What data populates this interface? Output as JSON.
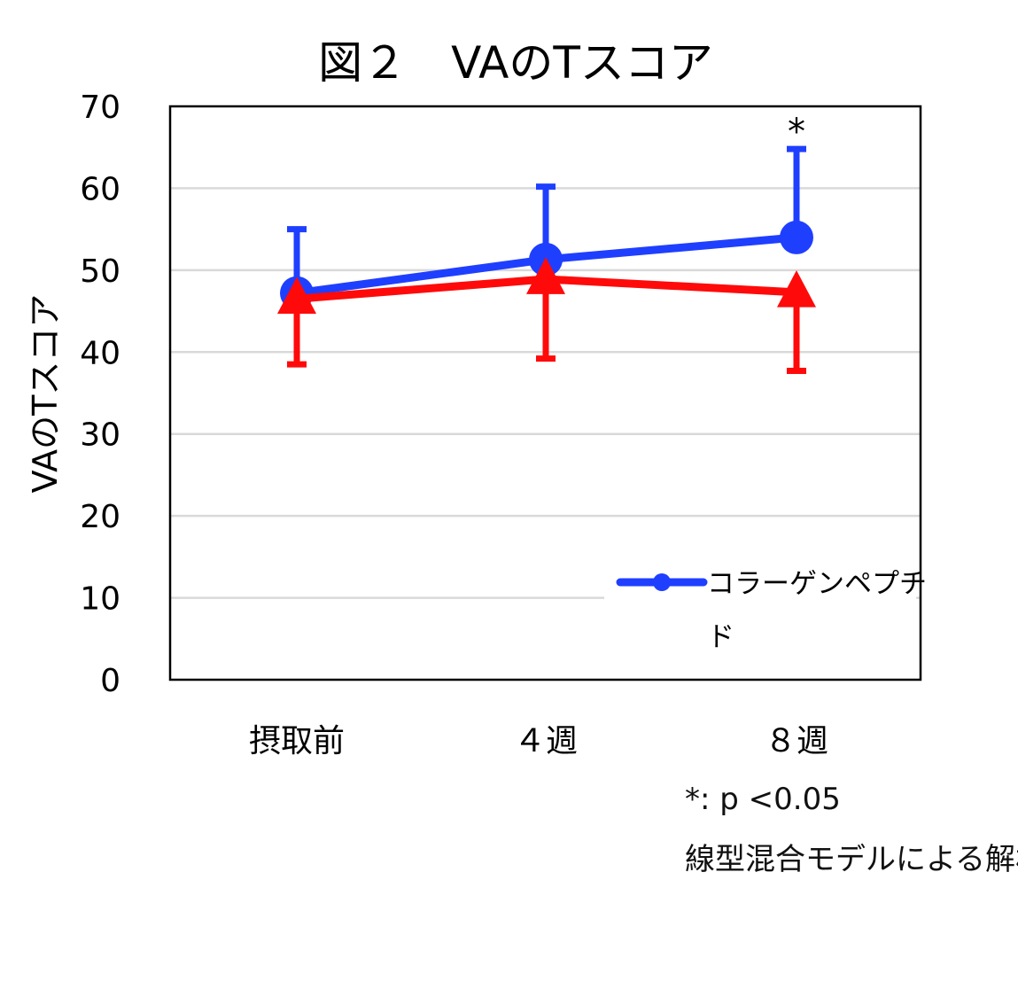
{
  "chart_data": {
    "type": "line",
    "title": "図２　VAのTスコア",
    "ylabel": "VAのTスコア",
    "xlabel": "",
    "categories": [
      "摂取前",
      "４週",
      "８週"
    ],
    "ylim": [
      0,
      70
    ],
    "yticks": [
      0,
      10,
      20,
      30,
      40,
      50,
      60,
      70
    ],
    "grid": true,
    "legend_position": "bottom-right",
    "series": [
      {
        "name": "コラーゲンペプチド",
        "color": "#1f3fff",
        "marker": "circle",
        "values": [
          47.2,
          51.3,
          54.0
        ],
        "error_upper": [
          55.0,
          60.2,
          64.8
        ]
      },
      {
        "name": "",
        "color": "#ff0a0a",
        "marker": "triangle",
        "values": [
          46.5,
          48.9,
          47.3
        ],
        "error_lower": [
          38.5,
          39.2,
          37.7
        ]
      }
    ],
    "annotations": [
      {
        "category_index": 2,
        "text": "*"
      }
    ]
  },
  "footnotes": {
    "line1": "*: p <0.05",
    "line2": "線型混合モデルによる解析"
  }
}
